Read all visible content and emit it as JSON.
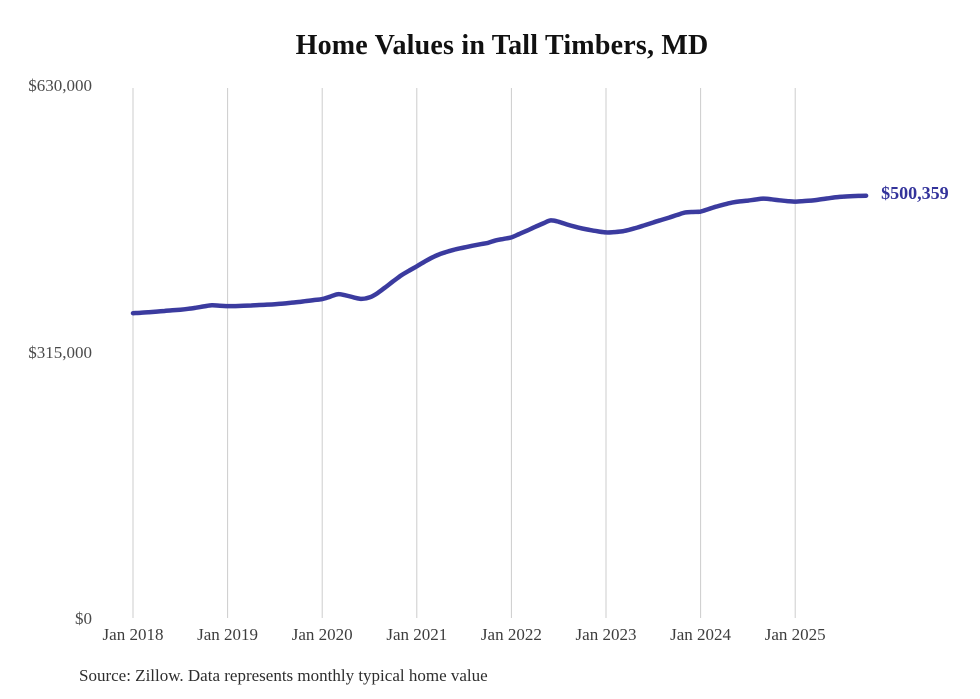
{
  "chart_data": {
    "type": "line",
    "title": "Home Values in Tall Timbers, MD",
    "source_note": "Source: Zillow. Data represents monthly typical home value",
    "xlabel": "",
    "ylabel": "",
    "ylim": [
      0,
      630000
    ],
    "grid": "vertical-only",
    "latest_value": 500359,
    "latest_value_label": "$500,359",
    "y_ticks": [
      {
        "label": "$0",
        "value": 0
      },
      {
        "label": "$315,000",
        "value": 315000
      },
      {
        "label": "$630,000",
        "value": 630000
      }
    ],
    "x_ticks": [
      {
        "label": "Jan 2018",
        "month_index": 0
      },
      {
        "label": "Jan 2019",
        "month_index": 12
      },
      {
        "label": "Jan 2020",
        "month_index": 24
      },
      {
        "label": "Jan 2021",
        "month_index": 36
      },
      {
        "label": "Jan 2022",
        "month_index": 48
      },
      {
        "label": "Jan 2023",
        "month_index": 60
      },
      {
        "label": "Jan 2024",
        "month_index": 72
      },
      {
        "label": "Jan 2025",
        "month_index": 84
      }
    ],
    "series": [
      {
        "name": "Typical home value",
        "frequency": "monthly",
        "start_month": "2018-01",
        "end_month": "2025-10",
        "values": [
          361500,
          362000,
          362600,
          363300,
          364100,
          364900,
          365600,
          366600,
          368000,
          369500,
          370800,
          370300,
          369800,
          369900,
          370200,
          370600,
          371100,
          371600,
          372100,
          372800,
          373700,
          374700,
          375900,
          377000,
          378100,
          381000,
          383900,
          382500,
          380100,
          378300,
          380100,
          385100,
          392000,
          399100,
          406000,
          411600,
          416900,
          422500,
          427500,
          431500,
          434500,
          437100,
          439100,
          441100,
          442900,
          444600,
          447500,
          449300,
          451100,
          455100,
          459100,
          463500,
          467500,
          471100,
          469500,
          466400,
          463800,
          461600,
          459700,
          458100,
          456900,
          457300,
          458100,
          460200,
          462800,
          465700,
          468700,
          471600,
          474500,
          477500,
          480400,
          481100,
          481600,
          484500,
          487500,
          490000,
          492200,
          493600,
          494600,
          495800,
          496900,
          496100,
          494900,
          494000,
          493400,
          493900,
          494600,
          495700,
          497000,
          498300,
          499200,
          499800,
          500100,
          500359
        ]
      }
    ],
    "colors": {
      "line": "#3B3B9F",
      "latest_label": "#33339B",
      "grid": "#CCCCCC",
      "axis_text": "#4A4A4A",
      "title_text": "#111111",
      "source_text": "#2E2E2E",
      "background": "#FFFFFF"
    }
  }
}
